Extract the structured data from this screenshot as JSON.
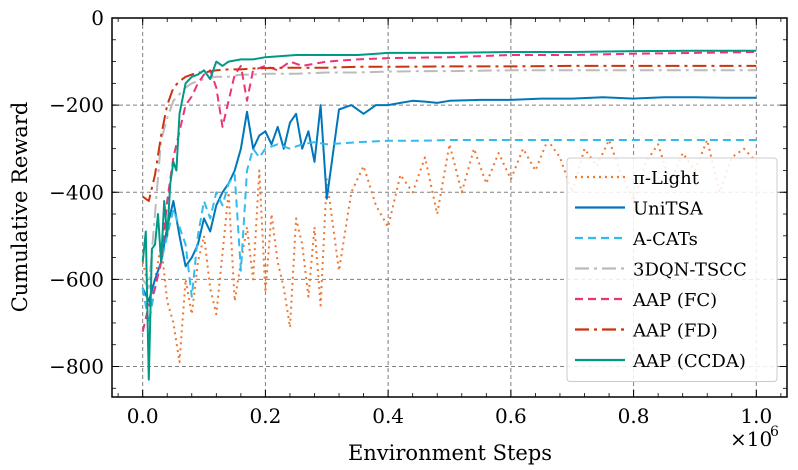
{
  "chart_data": {
    "type": "line",
    "title": "",
    "xlabel": "Environment Steps",
    "ylabel": "Cumulative Reward",
    "x_multiplier_label": "×10",
    "x_multiplier_exp": "6",
    "xlim": [
      -0.05,
      1.05
    ],
    "ylim": [
      -870,
      0
    ],
    "x_ticks": [
      0.0,
      0.2,
      0.4,
      0.6,
      0.8,
      1.0
    ],
    "x_tick_labels": [
      "0.0",
      "0.2",
      "0.4",
      "0.6",
      "0.8",
      "1.0"
    ],
    "y_ticks": [
      0,
      -200,
      -400,
      -600,
      -800
    ],
    "y_tick_labels": [
      "0",
      "−200",
      "−400",
      "−600",
      "−800"
    ],
    "grid": true,
    "legend_position": "lower-right",
    "series": [
      {
        "name": "π-Light",
        "color": "#EE7733",
        "dash": "2,4",
        "x": [
          0.0,
          0.01,
          0.02,
          0.03,
          0.04,
          0.05,
          0.06,
          0.07,
          0.08,
          0.09,
          0.1,
          0.11,
          0.12,
          0.13,
          0.14,
          0.15,
          0.16,
          0.17,
          0.18,
          0.19,
          0.2,
          0.21,
          0.22,
          0.23,
          0.24,
          0.25,
          0.26,
          0.27,
          0.28,
          0.29,
          0.3,
          0.32,
          0.34,
          0.36,
          0.38,
          0.4,
          0.42,
          0.44,
          0.46,
          0.48,
          0.5,
          0.52,
          0.54,
          0.56,
          0.58,
          0.6,
          0.62,
          0.64,
          0.66,
          0.68,
          0.7,
          0.72,
          0.74,
          0.76,
          0.78,
          0.8,
          0.82,
          0.84,
          0.86,
          0.88,
          0.9,
          0.92,
          0.94,
          0.96,
          0.98,
          1.0
        ],
        "y": [
          -560,
          -620,
          -600,
          -520,
          -650,
          -700,
          -790,
          -600,
          -680,
          -560,
          -500,
          -620,
          -680,
          -540,
          -400,
          -650,
          -560,
          -480,
          -600,
          -350,
          -630,
          -450,
          -560,
          -620,
          -710,
          -460,
          -520,
          -640,
          -480,
          -660,
          -370,
          -580,
          -400,
          -340,
          -430,
          -480,
          -360,
          -400,
          -320,
          -450,
          -290,
          -400,
          -300,
          -380,
          -310,
          -370,
          -300,
          -350,
          -280,
          -320,
          -400,
          -300,
          -340,
          -280,
          -360,
          -420,
          -330,
          -290,
          -380,
          -310,
          -350,
          -280,
          -400,
          -320,
          -300,
          -330
        ]
      },
      {
        "name": "UniTSA",
        "color": "#0077BB",
        "dash": "",
        "x": [
          0.0,
          0.01,
          0.02,
          0.03,
          0.04,
          0.05,
          0.06,
          0.07,
          0.08,
          0.09,
          0.1,
          0.11,
          0.12,
          0.13,
          0.14,
          0.15,
          0.16,
          0.17,
          0.18,
          0.19,
          0.2,
          0.21,
          0.22,
          0.23,
          0.24,
          0.25,
          0.26,
          0.27,
          0.28,
          0.29,
          0.3,
          0.32,
          0.34,
          0.36,
          0.38,
          0.4,
          0.42,
          0.44,
          0.46,
          0.48,
          0.5,
          0.55,
          0.6,
          0.65,
          0.7,
          0.75,
          0.8,
          0.85,
          0.9,
          0.95,
          1.0
        ],
        "y": [
          -620,
          -650,
          -600,
          -560,
          -480,
          -420,
          -500,
          -570,
          -550,
          -520,
          -460,
          -490,
          -430,
          -400,
          -380,
          -350,
          -300,
          -215,
          -300,
          -270,
          -260,
          -290,
          -250,
          -300,
          -240,
          -220,
          -300,
          -260,
          -330,
          -200,
          -415,
          -210,
          -200,
          -220,
          -200,
          -200,
          -195,
          -190,
          -192,
          -195,
          -190,
          -188,
          -188,
          -185,
          -185,
          -182,
          -185,
          -182,
          -182,
          -183,
          -183
        ]
      },
      {
        "name": "A-CATs",
        "color": "#33BBEE",
        "dash": "8,5",
        "x": [
          0.0,
          0.01,
          0.02,
          0.03,
          0.04,
          0.05,
          0.06,
          0.07,
          0.08,
          0.09,
          0.1,
          0.11,
          0.12,
          0.13,
          0.14,
          0.15,
          0.16,
          0.17,
          0.18,
          0.19,
          0.2,
          0.22,
          0.24,
          0.26,
          0.28,
          0.3,
          0.35,
          0.4,
          0.45,
          0.5,
          0.6,
          0.7,
          0.8,
          0.9,
          1.0
        ],
        "y": [
          -620,
          -700,
          -620,
          -560,
          -500,
          -440,
          -480,
          -520,
          -640,
          -500,
          -420,
          -460,
          -400,
          -430,
          -380,
          -360,
          -580,
          -350,
          -300,
          -320,
          -300,
          -290,
          -300,
          -290,
          -285,
          -290,
          -285,
          -282,
          -282,
          -280,
          -280,
          -280,
          -280,
          -280,
          -280
        ]
      },
      {
        "name": "3DQN-TSCC",
        "color": "#BBBBBB",
        "dash": "14,5,3,5",
        "x": [
          0.0,
          0.01,
          0.02,
          0.03,
          0.04,
          0.05,
          0.06,
          0.07,
          0.08,
          0.09,
          0.1,
          0.12,
          0.14,
          0.16,
          0.18,
          0.2,
          0.25,
          0.3,
          0.35,
          0.4,
          0.45,
          0.5,
          0.6,
          0.7,
          0.8,
          0.9,
          1.0
        ],
        "y": [
          -600,
          -620,
          -450,
          -280,
          -230,
          -190,
          -175,
          -160,
          -150,
          -145,
          -140,
          -135,
          -135,
          -130,
          -130,
          -128,
          -128,
          -125,
          -125,
          -123,
          -122,
          -122,
          -120,
          -120,
          -120,
          -120,
          -120
        ]
      },
      {
        "name": "AAP (FC)",
        "color": "#EE3377",
        "dash": "8,5",
        "x": [
          0.0,
          0.01,
          0.02,
          0.03,
          0.04,
          0.05,
          0.06,
          0.07,
          0.08,
          0.09,
          0.1,
          0.11,
          0.12,
          0.13,
          0.14,
          0.15,
          0.16,
          0.17,
          0.18,
          0.2,
          0.22,
          0.24,
          0.26,
          0.28,
          0.3,
          0.35,
          0.4,
          0.5,
          0.6,
          0.7,
          0.8,
          0.9,
          1.0
        ],
        "y": [
          -720,
          -660,
          -620,
          -560,
          -420,
          -320,
          -260,
          -200,
          -180,
          -150,
          -130,
          -120,
          -160,
          -250,
          -190,
          -130,
          -110,
          -190,
          -120,
          -110,
          -120,
          -100,
          -110,
          -105,
          -100,
          -95,
          -92,
          -90,
          -85,
          -85,
          -82,
          -80,
          -78
        ]
      },
      {
        "name": "AAP (FD)",
        "color": "#CC3311",
        "dash": "14,5,3,5",
        "x": [
          0.0,
          0.01,
          0.02,
          0.03,
          0.04,
          0.05,
          0.06,
          0.07,
          0.08,
          0.09,
          0.1,
          0.12,
          0.14,
          0.16,
          0.18,
          0.2,
          0.25,
          0.3,
          0.35,
          0.4,
          0.5,
          0.6,
          0.7,
          0.8,
          0.9,
          1.0
        ],
        "y": [
          -410,
          -420,
          -360,
          -270,
          -200,
          -160,
          -145,
          -135,
          -130,
          -125,
          -125,
          -120,
          -118,
          -118,
          -116,
          -115,
          -114,
          -114,
          -112,
          -112,
          -111,
          -111,
          -110,
          -110,
          -110,
          -110
        ]
      },
      {
        "name": "AAP (CCDA)",
        "color": "#009988",
        "dash": "",
        "x": [
          0.0,
          0.005,
          0.01,
          0.015,
          0.02,
          0.025,
          0.03,
          0.035,
          0.04,
          0.045,
          0.05,
          0.055,
          0.06,
          0.07,
          0.08,
          0.09,
          0.1,
          0.11,
          0.12,
          0.13,
          0.14,
          0.16,
          0.18,
          0.2,
          0.25,
          0.3,
          0.35,
          0.4,
          0.5,
          0.6,
          0.7,
          0.8,
          0.9,
          1.0
        ],
        "y": [
          -560,
          -490,
          -830,
          -530,
          -520,
          -450,
          -560,
          -420,
          -500,
          -380,
          -330,
          -350,
          -220,
          -150,
          -135,
          -130,
          -120,
          -140,
          -100,
          -110,
          -100,
          -95,
          -95,
          -90,
          -85,
          -85,
          -85,
          -80,
          -80,
          -78,
          -78,
          -76,
          -75,
          -75
        ]
      }
    ]
  }
}
